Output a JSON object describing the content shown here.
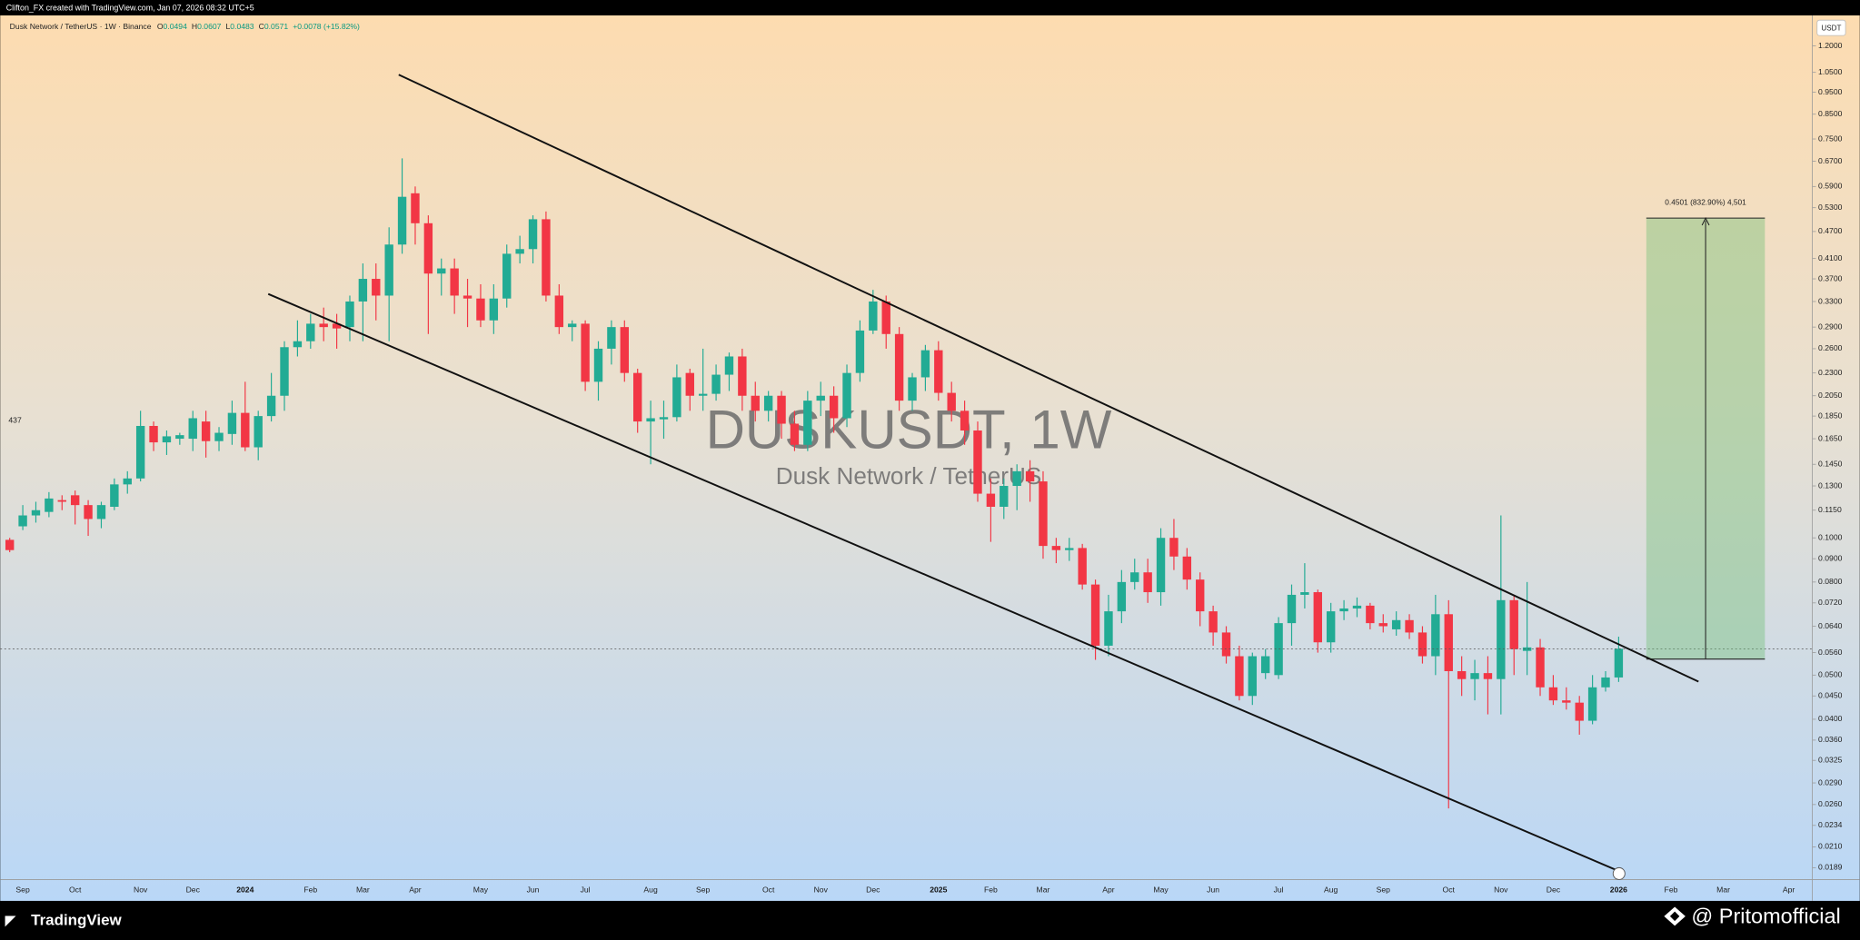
{
  "header": {
    "credit": "Clifton_FX created with TradingView.com, Jan 07, 2026 08:32 UTC+5",
    "symbol": "Dusk Network / TetherUS · 1W · Binance",
    "ohlc_labels": [
      "O",
      "H",
      "L",
      "C"
    ],
    "change": "+0.0078 (+15.82%)",
    "left_label": "437",
    "currency": "USDT"
  },
  "watermark": {
    "symbol": "DUSKUSDT, 1W",
    "name": "Dusk Network / TetherUS"
  },
  "measure": {
    "label": "0.4501 (832.90%) 4,501"
  },
  "footer": {
    "brand": "TradingView",
    "author": "@ Pritomofficial"
  },
  "chart_data": {
    "type": "candlestick",
    "log_scale": true,
    "grid": false,
    "up_color": "#22ab94",
    "down_color": "#f23645",
    "ylim": [
      0.0178,
      1.4
    ],
    "yticks": [
      {
        "value": 1.2,
        "label": "1.2000"
      },
      {
        "value": 1.05,
        "label": "1.0500"
      },
      {
        "value": 0.95,
        "label": "0.9500"
      },
      {
        "value": 0.85,
        "label": "0.8500"
      },
      {
        "value": 0.75,
        "label": "0.7500"
      },
      {
        "value": 0.67,
        "label": "0.6700"
      },
      {
        "value": 0.59,
        "label": "0.5900"
      },
      {
        "value": 0.53,
        "label": "0.5300"
      },
      {
        "value": 0.47,
        "label": "0.4700"
      },
      {
        "value": 0.41,
        "label": "0.4100"
      },
      {
        "value": 0.37,
        "label": "0.3700"
      },
      {
        "value": 0.33,
        "label": "0.3300"
      },
      {
        "value": 0.29,
        "label": "0.2900"
      },
      {
        "value": 0.26,
        "label": "0.2600"
      },
      {
        "value": 0.23,
        "label": "0.2300"
      },
      {
        "value": 0.205,
        "label": "0.2050"
      },
      {
        "value": 0.185,
        "label": "0.1850"
      },
      {
        "value": 0.165,
        "label": "0.1650"
      },
      {
        "value": 0.145,
        "label": "0.1450"
      },
      {
        "value": 0.13,
        "label": "0.1300"
      },
      {
        "value": 0.115,
        "label": "0.1150"
      },
      {
        "value": 0.1,
        "label": "0.1000"
      },
      {
        "value": 0.09,
        "label": "0.0900"
      },
      {
        "value": 0.08,
        "label": "0.0800"
      },
      {
        "value": 0.072,
        "label": "0.0720"
      },
      {
        "value": 0.064,
        "label": "0.0640"
      },
      {
        "value": 0.056,
        "label": "0.0560"
      },
      {
        "value": 0.05,
        "label": "0.0500"
      },
      {
        "value": 0.045,
        "label": "0.0450"
      },
      {
        "value": 0.04,
        "label": "0.0400"
      },
      {
        "value": 0.036,
        "label": "0.0360"
      },
      {
        "value": 0.0325,
        "label": "0.0325"
      },
      {
        "value": 0.029,
        "label": "0.0290"
      },
      {
        "value": 0.026,
        "label": "0.0260"
      },
      {
        "value": 0.0234,
        "label": "0.0234"
      },
      {
        "value": 0.021,
        "label": "0.0210"
      },
      {
        "value": 0.0189,
        "label": "0.0189"
      }
    ],
    "categories": [
      null,
      "Sep",
      null,
      null,
      null,
      "Oct",
      null,
      null,
      null,
      null,
      "Nov",
      null,
      null,
      null,
      "Dec",
      null,
      null,
      null,
      "2024",
      null,
      null,
      null,
      null,
      "Feb",
      null,
      null,
      null,
      "Mar",
      null,
      null,
      null,
      "Apr",
      null,
      null,
      null,
      null,
      "May",
      null,
      null,
      null,
      "Jun",
      null,
      null,
      null,
      "Jul",
      null,
      null,
      null,
      null,
      "Aug",
      null,
      null,
      null,
      "Sep",
      null,
      null,
      null,
      null,
      "Oct",
      null,
      null,
      null,
      "Nov",
      null,
      null,
      null,
      "Dec",
      null,
      null,
      null,
      null,
      "2025",
      null,
      null,
      null,
      "Feb",
      null,
      null,
      null,
      "Mar",
      null,
      null,
      null,
      null,
      "Apr",
      null,
      null,
      null,
      "May",
      null,
      null,
      null,
      "Jun",
      null,
      null,
      null,
      null,
      "Jul",
      null,
      null,
      null,
      "Aug",
      null,
      null,
      null,
      "Sep",
      null,
      null,
      null,
      null,
      "Oct",
      null,
      null,
      null,
      "Nov",
      null,
      null,
      null,
      "Dec",
      null,
      null,
      null,
      null,
      "2026",
      null,
      null,
      null,
      "Feb",
      null,
      null,
      null,
      "Mar",
      null,
      null,
      null,
      null,
      "Apr"
    ],
    "open": [
      0.099,
      0.106,
      0.112,
      0.114,
      0.121,
      0.124,
      0.118,
      0.11,
      0.117,
      0.131,
      0.135,
      0.176,
      0.162,
      0.165,
      0.165,
      0.18,
      0.163,
      0.169,
      0.188,
      0.158,
      0.185,
      0.205,
      0.262,
      0.27,
      0.295,
      0.295,
      0.29,
      0.33,
      0.37,
      0.34,
      0.44,
      0.57,
      0.49,
      0.38,
      0.39,
      0.34,
      0.335,
      0.3,
      0.335,
      0.42,
      0.43,
      0.5,
      0.34,
      0.29,
      0.295,
      0.22,
      0.26,
      0.29,
      0.23,
      0.18,
      0.182,
      0.184,
      0.23,
      0.205,
      0.207,
      0.228,
      0.25,
      0.205,
      0.19,
      0.205,
      0.178,
      0.16,
      0.2,
      0.205,
      0.183,
      0.23,
      0.285,
      0.33,
      0.28,
      0.2,
      0.225,
      0.258,
      0.208,
      0.19,
      0.172,
      0.125,
      0.117,
      0.13,
      0.14,
      0.133,
      0.096,
      0.094,
      0.095,
      0.079,
      0.058,
      0.069,
      0.08,
      0.084,
      0.076,
      0.1,
      0.091,
      0.081,
      0.069,
      0.062,
      0.055,
      0.045,
      0.0505,
      0.05,
      0.065,
      0.075,
      0.076,
      0.059,
      0.069,
      0.07,
      0.071,
      0.065,
      0.063,
      0.066,
      0.062,
      0.055,
      0.068,
      0.051,
      0.049,
      0.0505,
      0.049,
      0.073,
      0.0565,
      0.0575,
      0.047,
      0.044,
      0.0435,
      0.0397,
      0.047,
      0.0494,
      null,
      null,
      null,
      null,
      null,
      null,
      null,
      null,
      null,
      null,
      null,
      null,
      null
    ],
    "high": [
      0.1,
      0.118,
      0.12,
      0.126,
      0.124,
      0.127,
      0.121,
      0.12,
      0.135,
      0.14,
      0.19,
      0.18,
      0.172,
      0.17,
      0.19,
      0.19,
      0.175,
      0.2,
      0.22,
      0.19,
      0.23,
      0.27,
      0.3,
      0.31,
      0.32,
      0.31,
      0.34,
      0.4,
      0.4,
      0.48,
      0.68,
      0.59,
      0.51,
      0.41,
      0.41,
      0.37,
      0.36,
      0.36,
      0.44,
      0.46,
      0.51,
      0.52,
      0.36,
      0.3,
      0.3,
      0.27,
      0.3,
      0.3,
      0.235,
      0.2,
      0.2,
      0.24,
      0.235,
      0.26,
      0.24,
      0.255,
      0.26,
      0.22,
      0.21,
      0.21,
      0.19,
      0.21,
      0.22,
      0.215,
      0.24,
      0.3,
      0.35,
      0.34,
      0.29,
      0.23,
      0.265,
      0.27,
      0.22,
      0.2,
      0.18,
      0.135,
      0.135,
      0.145,
      0.148,
      0.14,
      0.1,
      0.1,
      0.097,
      0.081,
      0.075,
      0.085,
      0.09,
      0.09,
      0.105,
      0.11,
      0.095,
      0.084,
      0.071,
      0.064,
      0.058,
      0.056,
      0.057,
      0.067,
      0.079,
      0.088,
      0.077,
      0.072,
      0.073,
      0.074,
      0.072,
      0.068,
      0.069,
      0.068,
      0.064,
      0.075,
      0.073,
      0.055,
      0.054,
      0.055,
      0.112,
      0.075,
      0.08,
      0.06,
      0.05,
      0.047,
      0.045,
      0.05,
      0.051,
      0.0607,
      null,
      null,
      null,
      null,
      null,
      null,
      null,
      null,
      null,
      null,
      null,
      null,
      null
    ],
    "low": [
      0.093,
      0.104,
      0.108,
      0.111,
      0.115,
      0.107,
      0.101,
      0.105,
      0.115,
      0.125,
      0.133,
      0.155,
      0.152,
      0.16,
      0.155,
      0.15,
      0.155,
      0.16,
      0.155,
      0.148,
      0.18,
      0.19,
      0.25,
      0.26,
      0.27,
      0.26,
      0.27,
      0.27,
      0.3,
      0.27,
      0.42,
      0.44,
      0.28,
      0.34,
      0.31,
      0.29,
      0.29,
      0.28,
      0.32,
      0.4,
      0.4,
      0.33,
      0.28,
      0.27,
      0.21,
      0.2,
      0.24,
      0.22,
      0.17,
      0.145,
      0.165,
      0.18,
      0.19,
      0.19,
      0.2,
      0.21,
      0.19,
      0.18,
      0.18,
      0.165,
      0.155,
      0.155,
      0.185,
      0.17,
      0.175,
      0.22,
      0.28,
      0.26,
      0.19,
      0.19,
      0.21,
      0.2,
      0.18,
      0.16,
      0.12,
      0.098,
      0.11,
      0.115,
      0.12,
      0.09,
      0.088,
      0.089,
      0.077,
      0.054,
      0.055,
      0.065,
      0.077,
      0.072,
      0.071,
      0.085,
      0.077,
      0.064,
      0.058,
      0.053,
      0.044,
      0.043,
      0.049,
      0.049,
      0.058,
      0.07,
      0.056,
      0.056,
      0.066,
      0.067,
      0.063,
      0.062,
      0.061,
      0.06,
      0.053,
      0.05,
      0.0255,
      0.045,
      0.044,
      0.041,
      0.041,
      0.05,
      0.05,
      0.045,
      0.043,
      0.042,
      0.037,
      0.039,
      0.046,
      0.0483,
      null,
      null,
      null,
      null,
      null,
      null,
      null,
      null,
      null,
      null,
      null,
      null,
      null
    ],
    "close": [
      0.094,
      0.112,
      0.115,
      0.122,
      0.12,
      0.118,
      0.11,
      0.118,
      0.131,
      0.135,
      0.176,
      0.162,
      0.167,
      0.168,
      0.183,
      0.163,
      0.17,
      0.188,
      0.158,
      0.185,
      0.205,
      0.262,
      0.27,
      0.295,
      0.29,
      0.288,
      0.33,
      0.37,
      0.34,
      0.44,
      0.56,
      0.49,
      0.38,
      0.39,
      0.34,
      0.335,
      0.3,
      0.335,
      0.42,
      0.43,
      0.5,
      0.34,
      0.29,
      0.295,
      0.22,
      0.26,
      0.29,
      0.23,
      0.18,
      0.183,
      0.184,
      0.225,
      0.205,
      0.207,
      0.228,
      0.25,
      0.205,
      0.19,
      0.205,
      0.178,
      0.16,
      0.2,
      0.205,
      0.183,
      0.23,
      0.285,
      0.33,
      0.28,
      0.2,
      0.225,
      0.258,
      0.208,
      0.19,
      0.172,
      0.125,
      0.117,
      0.13,
      0.14,
      0.133,
      0.096,
      0.094,
      0.095,
      0.079,
      0.058,
      0.069,
      0.08,
      0.084,
      0.076,
      0.1,
      0.091,
      0.081,
      0.069,
      0.062,
      0.055,
      0.045,
      0.055,
      0.055,
      0.065,
      0.075,
      0.076,
      0.059,
      0.069,
      0.07,
      0.071,
      0.065,
      0.064,
      0.066,
      0.062,
      0.055,
      0.068,
      0.051,
      0.049,
      0.0505,
      0.049,
      0.073,
      0.057,
      0.0575,
      0.047,
      0.044,
      0.0435,
      0.0397,
      0.047,
      0.0494,
      0.0571,
      null,
      null,
      null,
      null,
      null,
      null,
      null,
      null,
      null,
      null,
      null,
      null,
      null
    ]
  }
}
